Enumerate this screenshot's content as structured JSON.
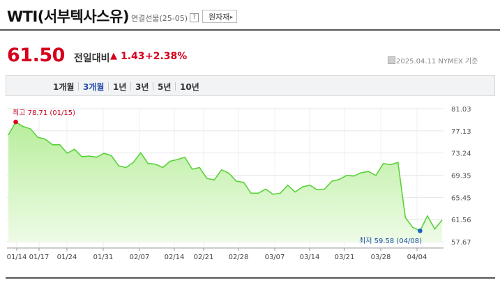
{
  "header": {
    "title": "WTI(서부텍사스유)",
    "subtitle": "연결선물(25-05)",
    "help_icon": "?",
    "raw_button_label": "원자재",
    "raw_button_arrow": "▸"
  },
  "price": {
    "value": "61.50",
    "change_label": "전일대비",
    "direction_icon": "▲",
    "change": "1.43",
    "change_pct": "+2.38%",
    "date_note": "2025.04.11 NYMEX 기준"
  },
  "tabs": [
    {
      "label": "1개월",
      "active": false
    },
    {
      "label": "3개월",
      "active": true
    },
    {
      "label": "1년",
      "active": false
    },
    {
      "label": "3년",
      "active": false
    },
    {
      "label": "5년",
      "active": false
    },
    {
      "label": "10년",
      "active": false
    }
  ],
  "colors": {
    "up": "#d6001c",
    "line": "#5ad23a",
    "fill_top": "#b8ee9c",
    "fill_bottom": "#eefbe6",
    "high_marker": "#e0001e",
    "low_marker": "#1a63c4",
    "active_tab": "#2a4ea8"
  },
  "chart_data": {
    "type": "area",
    "series": [
      {
        "values": [
          76.4,
          78.7,
          77.9,
          77.5,
          76.0,
          75.7,
          74.7,
          74.7,
          73.2,
          73.9,
          72.6,
          72.7,
          72.5,
          73.2,
          72.8,
          71.0,
          70.7,
          71.6,
          73.3,
          71.4,
          71.3,
          70.7,
          71.8,
          72.1,
          72.5,
          70.4,
          70.7,
          68.8,
          68.5,
          70.3,
          69.7,
          68.3,
          68.1,
          66.2,
          66.2,
          66.9,
          66.0,
          66.2,
          67.6,
          66.4,
          67.3,
          67.6,
          66.8,
          66.9,
          68.3,
          68.6,
          69.3,
          69.2,
          69.8,
          70.0,
          69.3,
          71.4,
          71.2,
          71.6,
          61.9,
          60.2,
          59.58,
          62.2,
          59.9,
          61.5
        ]
      }
    ],
    "x_ticks": [
      "01/14",
      "01/17",
      "01/24",
      "01/31",
      "02/07",
      "02/14",
      "02/21",
      "02/28",
      "03/07",
      "03/14",
      "03/21",
      "03/28",
      "04/04"
    ],
    "y_ticks": [
      "81.03",
      "77.13",
      "73.24",
      "69.35",
      "65.45",
      "61.56",
      "57.67"
    ],
    "ylim": [
      57.67,
      81.03
    ],
    "high": {
      "label": "최고",
      "value": "78.71",
      "date": "(01/15)"
    },
    "low": {
      "label": "최저",
      "value": "59.58",
      "date": "(04/08)"
    },
    "grid": true
  }
}
